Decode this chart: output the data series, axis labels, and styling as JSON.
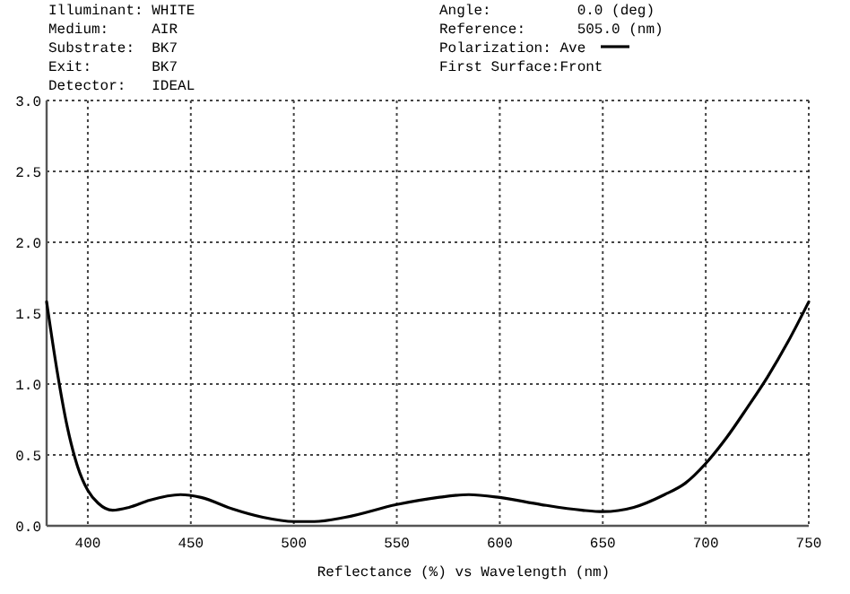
{
  "chart_data": {
    "type": "line",
    "xlabel": "Reflectance (%) vs Wavelength (nm)",
    "annotations": [
      "Illuminant: WHITE",
      "Medium:     AIR",
      "Substrate:  BK7",
      "Exit:       BK7",
      "Detector:   IDEAL",
      "Angle:          0.0 (deg)",
      "Reference:      505.0 (nm)",
      "First Surface:Front"
    ],
    "series": [
      {
        "name": "Polarization: Ave",
        "color": "#000000",
        "x": [
          380,
          385,
          390,
          395,
          400,
          405,
          412,
          420,
          430,
          445,
          455,
          470,
          485,
          500,
          510,
          525,
          550,
          570,
          585,
          600,
          620,
          640,
          650,
          665,
          680,
          690,
          700,
          710,
          720,
          730,
          740,
          750
        ],
        "values": [
          1.58,
          1.1,
          0.7,
          0.42,
          0.25,
          0.16,
          0.11,
          0.13,
          0.18,
          0.22,
          0.2,
          0.12,
          0.06,
          0.03,
          0.03,
          0.06,
          0.15,
          0.2,
          0.22,
          0.2,
          0.15,
          0.11,
          0.1,
          0.13,
          0.22,
          0.3,
          0.44,
          0.62,
          0.83,
          1.05,
          1.3,
          1.58
        ]
      }
    ],
    "xlim": [
      380,
      750
    ],
    "xticks": [
      400,
      450,
      500,
      550,
      600,
      650,
      700,
      750
    ],
    "ylim": [
      0,
      3
    ],
    "yticks": [
      {
        "value": 0,
        "label": "0.0"
      },
      {
        "value": 0.5,
        "label": "0.5"
      },
      {
        "value": 1,
        "label": "1.0"
      },
      {
        "value": 1.5,
        "label": "1.5"
      },
      {
        "value": 2,
        "label": "2.0"
      },
      {
        "value": 2.5,
        "label": "2.5"
      },
      {
        "value": 3,
        "label": "3.0"
      }
    ],
    "grid": true,
    "legend": "top right",
    "line_style": "solid",
    "marker": "none"
  }
}
